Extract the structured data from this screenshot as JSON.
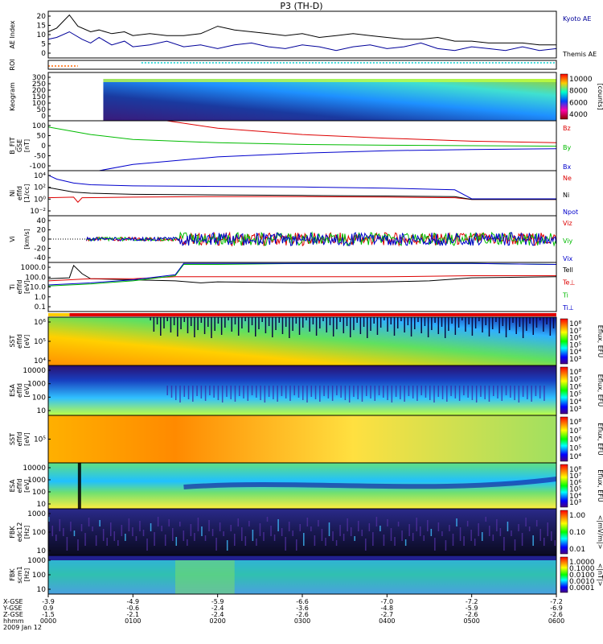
{
  "title": "P3 (TH-D)",
  "chart_data": [
    {
      "type": "line",
      "ylabel": "AE Index",
      "yticks": [
        "20",
        "15",
        "10",
        "5",
        "0"
      ],
      "ylim": [
        0,
        25
      ],
      "series": [
        {
          "name": "Kyoto AE",
          "color": "#000099",
          "x": [
            0,
            0.1,
            0.25,
            0.4,
            0.5,
            0.6,
            0.75,
            0.9,
            1.0,
            1.2,
            1.4,
            1.6,
            1.8,
            2.0,
            2.2,
            2.4,
            2.6,
            2.8,
            3.0,
            3.2,
            3.4,
            3.6,
            3.8,
            4.0,
            4.2,
            4.4,
            4.6,
            4.8,
            5.0,
            5.2,
            5.4,
            5.6,
            5.8,
            6.0
          ],
          "y": [
            10,
            11,
            14,
            10,
            8,
            11,
            7,
            9,
            6,
            7,
            9,
            6,
            7,
            5,
            7,
            8,
            6,
            5,
            7,
            6,
            4,
            6,
            7,
            5,
            6,
            8,
            5,
            4,
            6,
            5,
            4,
            6,
            4,
            5
          ]
        },
        {
          "name": "Themis AE",
          "color": "#000000",
          "x": [
            0,
            0.1,
            0.25,
            0.35,
            0.5,
            0.6,
            0.75,
            0.9,
            1.0,
            1.2,
            1.4,
            1.6,
            1.8,
            2.0,
            2.2,
            2.4,
            2.6,
            2.8,
            3.0,
            3.2,
            3.4,
            3.6,
            3.8,
            4.0,
            4.2,
            4.4,
            4.6,
            4.8,
            5.0,
            5.2,
            5.4,
            5.6,
            5.8,
            6.0
          ],
          "y": [
            14,
            16,
            23,
            17,
            14,
            15,
            13,
            14,
            12,
            13,
            12,
            12,
            13,
            17,
            15,
            14,
            13,
            12,
            13,
            11,
            12,
            13,
            12,
            11,
            10,
            10,
            11,
            9,
            9,
            8,
            8,
            8,
            7,
            7
          ]
        }
      ]
    },
    {
      "type": "heatmap",
      "ylabel": "ROI",
      "rows": [
        "orange markers",
        "teal markers"
      ],
      "segments": [
        {
          "row": 1,
          "from": 0.0,
          "to": 0.35,
          "color": "#ff6600"
        },
        {
          "row": 0,
          "from": 1.1,
          "to": 6.0,
          "color": "#00cccc"
        }
      ]
    },
    {
      "type": "heatmap",
      "ylabel": "Keogram",
      "yticks": [
        "300",
        "250",
        "200",
        "150",
        "100",
        "50",
        "0"
      ],
      "ylim": [
        0,
        300
      ],
      "x_start": 0.65,
      "colorbar": {
        "ticks": [
          "10000",
          "8000",
          "6000",
          "4000"
        ],
        "unit": "[counts]"
      }
    },
    {
      "type": "line",
      "ylabel": "B_FIT",
      "units": "[nT]",
      "sublabel": "GSE",
      "yticks": [
        "100",
        "50",
        "0",
        "-50",
        "-100"
      ],
      "ylim": [
        -100,
        100
      ],
      "series": [
        {
          "name": "Bz",
          "color": "#dd0000",
          "x": [
            1.4,
            2.0,
            3.0,
            4.0,
            5.0,
            6.0
          ],
          "y": [
            100,
            70,
            45,
            30,
            18,
            12
          ]
        },
        {
          "name": "By",
          "color": "#00bb00",
          "x": [
            0.0,
            0.5,
            1.0,
            2.0,
            3.0,
            4.0,
            5.0,
            6.0
          ],
          "y": [
            75,
            45,
            25,
            12,
            5,
            2,
            0,
            -2
          ]
        },
        {
          "name": "Bx",
          "color": "#0000cc",
          "x": [
            0.6,
            1.0,
            2.0,
            3.0,
            4.0,
            5.0,
            6.0
          ],
          "y": [
            -100,
            -75,
            -45,
            -30,
            -20,
            -15,
            -12
          ]
        }
      ]
    },
    {
      "type": "line",
      "ylabel": "Ni",
      "units": "[1/cc]",
      "sublabel": "eflfd",
      "yticks": [
        "10⁴",
        "10²",
        "10⁰",
        "10⁻²"
      ],
      "ylim": [
        -3,
        5
      ],
      "scale": "log",
      "series": [
        {
          "name": "Ne",
          "color": "#dd0000",
          "x": [
            0,
            0.3,
            0.35,
            0.4,
            1.0,
            2.0,
            3.0,
            4.0,
            4.8,
            5.0,
            6.0
          ],
          "y": [
            0.2,
            0.3,
            -0.6,
            0.2,
            0.3,
            0.4,
            0.4,
            0.3,
            0.2,
            -0.1,
            -0.1
          ]
        },
        {
          "name": "Ni",
          "color": "#000000",
          "x": [
            0,
            0.3,
            0.5,
            1.0,
            2.0,
            3.0,
            4.0,
            4.8,
            5.0,
            6.0
          ],
          "y": [
            2.0,
            1.2,
            1.0,
            0.8,
            0.7,
            0.6,
            0.5,
            0.4,
            -0.1,
            -0.1
          ]
        },
        {
          "name": "Npot",
          "color": "#0000cc",
          "x": [
            0,
            0.1,
            0.3,
            0.5,
            1.0,
            2.0,
            3.0,
            4.0,
            4.8,
            5.0,
            6.0
          ],
          "y": [
            4.2,
            3.5,
            2.8,
            2.5,
            2.3,
            2.2,
            2.1,
            1.9,
            1.6,
            0.0,
            0.0
          ]
        }
      ]
    },
    {
      "type": "line",
      "ylabel": "Vi",
      "units": "[km/s]",
      "yticks": [
        "40",
        "20",
        "0",
        "-20",
        "-40"
      ],
      "ylim": [
        -50,
        50
      ],
      "series": [
        {
          "name": "Viz",
          "color": "#dd0000"
        },
        {
          "name": "Viy",
          "color": "#00bb00"
        },
        {
          "name": "Vix",
          "color": "#0000cc"
        }
      ],
      "noise_start": 0.45,
      "noise_amp_quiet": 4,
      "noise_amp_active": 14,
      "active_from": 1.55
    },
    {
      "type": "line",
      "ylabel": "Ti",
      "units": "[eV]",
      "sublabel": "eflfd",
      "yticks": [
        "1000.0",
        "100.0",
        "10.0",
        "1.0",
        "0.1"
      ],
      "ylim": [
        -1.2,
        3.6
      ],
      "scale": "log",
      "series": [
        {
          "name": "Tell",
          "color": "#000000",
          "x": [
            0,
            0.25,
            0.3,
            0.4,
            0.5,
            1.0,
            1.5,
            1.8,
            2.0,
            3.0,
            4.0,
            4.5,
            5.0,
            6.0
          ],
          "y": [
            2.0,
            2.1,
            3.3,
            2.5,
            2.0,
            1.9,
            1.8,
            1.6,
            1.7,
            1.6,
            1.7,
            1.8,
            2.1,
            2.2
          ]
        },
        {
          "name": "Te⊥",
          "color": "#dd0000",
          "x": [
            0,
            0.5,
            1.0,
            1.5,
            1.6,
            2.0,
            3.0,
            4.0,
            5.0,
            6.0
          ],
          "y": [
            1.8,
            2.0,
            2.0,
            2.2,
            2.2,
            2.2,
            2.2,
            2.2,
            2.3,
            2.3
          ]
        },
        {
          "name": "Ti",
          "color": "#00bb00",
          "x": [
            0,
            0.5,
            1.0,
            1.5,
            1.6,
            2.0,
            3.0,
            4.0,
            5.0,
            6.0
          ],
          "y": [
            1.3,
            1.5,
            1.8,
            2.3,
            3.4,
            3.4,
            3.5,
            3.5,
            3.5,
            3.4
          ]
        },
        {
          "name": "Ti⊥",
          "color": "#0000cc",
          "x": [
            0,
            0.5,
            1.0,
            1.5,
            1.6,
            2.0,
            3.0,
            4.0,
            5.0,
            6.0
          ],
          "y": [
            1.4,
            1.6,
            1.9,
            2.4,
            3.5,
            3.5,
            3.5,
            3.5,
            3.5,
            3.4
          ]
        }
      ]
    },
    {
      "type": "heatmap",
      "ylabel": "SST",
      "sublabel": "eflfd",
      "units": "[eV]",
      "yticks": [
        "10⁶",
        "10⁵",
        "10⁴"
      ],
      "colorbar": {
        "ticks": [
          "10⁸",
          "10⁷",
          "10⁶",
          "10⁵",
          "10⁴",
          "10³"
        ],
        "unit": "Eflux, EFU"
      }
    },
    {
      "type": "heatmap",
      "ylabel": "ESA",
      "sublabel": "eflfd",
      "units": "[eV]",
      "yticks": [
        "10000",
        "1000",
        "100",
        "10"
      ],
      "colorbar": {
        "ticks": [
          "10⁸",
          "10⁷",
          "10⁶",
          "10⁵",
          "10⁴",
          "10³"
        ],
        "unit": "Eflux, EFU"
      }
    },
    {
      "type": "heatmap",
      "ylabel": "SST",
      "sublabel": "eflfd",
      "units": "[eV]",
      "yticks": [
        "10⁵"
      ],
      "colorbar": {
        "ticks": [
          "10⁸",
          "10⁷",
          "10⁶",
          "10⁵",
          "10⁴"
        ],
        "unit": "Eflux, EFU"
      }
    },
    {
      "type": "heatmap",
      "ylabel": "ESA",
      "sublabel": "eflfd",
      "units": "[eV]",
      "yticks": [
        "10000",
        "1000",
        "100",
        "10"
      ],
      "colorbar": {
        "ticks": [
          "10⁸",
          "10⁷",
          "10⁶",
          "10⁵",
          "10⁴",
          "10³"
        ],
        "unit": "Eflux, EFU"
      }
    },
    {
      "type": "heatmap",
      "ylabel": "FBK",
      "sublabel": "edc12",
      "units": "[Hz]",
      "yticks": [
        "1000",
        "100",
        "10"
      ],
      "colorbar": {
        "ticks": [
          "1.00",
          "0.10",
          "0.01"
        ],
        "unit": "<|mV/m|>"
      }
    },
    {
      "type": "heatmap",
      "ylabel": "FBK",
      "sublabel": "scm1",
      "units": "[Hz]",
      "yticks": [
        "1000",
        "100",
        "10"
      ],
      "colorbar": {
        "ticks": [
          "1.0000",
          "0.1000",
          "0.0100",
          "0.0010",
          "0.0001"
        ],
        "unit": "<|nT|>"
      }
    }
  ],
  "time_axis": {
    "row_labels": [
      "X-GSE",
      "Y-GSE",
      "Z-GSE",
      "hhmm",
      "2009 Jan 12"
    ],
    "columns": [
      {
        "x": [
          "-3.9",
          "0.9",
          "-1.5",
          "0000"
        ]
      },
      {
        "x": [
          "-4.9",
          "-0.6",
          "-2.1",
          "0100"
        ]
      },
      {
        "x": [
          "-5.9",
          "-2.4",
          "-2.4",
          "0200"
        ]
      },
      {
        "x": [
          "-6.6",
          "-3.6",
          "-2.6",
          "0300"
        ]
      },
      {
        "x": [
          "-7.0",
          "-4.8",
          "-2.7",
          "0400"
        ]
      },
      {
        "x": [
          "-7.2",
          "-5.9",
          "-2.6",
          "0500"
        ]
      },
      {
        "x": [
          "-7.2",
          "-6.9",
          "-2.6",
          "0600"
        ]
      }
    ]
  },
  "colors": {
    "frame": "#000000",
    "background": "#ffffff"
  }
}
